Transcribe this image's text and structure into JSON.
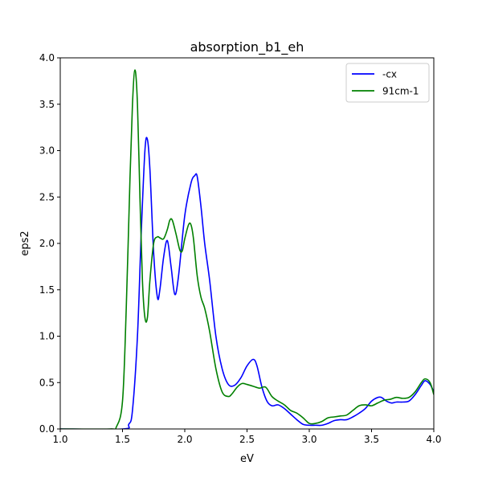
{
  "chart_data": {
    "type": "line",
    "title": "absorption_b1_eh",
    "xlabel": "eV",
    "ylabel": "eps2",
    "xlim": [
      1.0,
      4.0
    ],
    "ylim": [
      0.0,
      4.0
    ],
    "xticks": [
      1.0,
      1.5,
      2.0,
      2.5,
      3.0,
      3.5,
      4.0
    ],
    "yticks": [
      0.0,
      0.5,
      1.0,
      1.5,
      2.0,
      2.5,
      3.0,
      3.5,
      4.0
    ],
    "xtick_labels": [
      "1.0",
      "1.5",
      "2.0",
      "2.5",
      "3.0",
      "3.5",
      "4.0"
    ],
    "ytick_labels": [
      "0.0",
      "0.5",
      "1.0",
      "1.5",
      "2.0",
      "2.5",
      "3.0",
      "3.5",
      "4.0"
    ],
    "grid": false,
    "legend_position": "top-right",
    "series": [
      {
        "name": "-cx",
        "color": "#0000ff",
        "x": [
          1.0,
          1.5,
          1.55,
          1.58,
          1.62,
          1.65,
          1.68,
          1.7,
          1.72,
          1.75,
          1.78,
          1.8,
          1.83,
          1.86,
          1.89,
          1.92,
          1.95,
          2.0,
          2.05,
          2.08,
          2.1,
          2.13,
          2.16,
          2.2,
          2.25,
          2.3,
          2.35,
          2.4,
          2.45,
          2.5,
          2.55,
          2.58,
          2.62,
          2.66,
          2.7,
          2.75,
          2.8,
          2.85,
          2.9,
          2.95,
          3.0,
          3.05,
          3.1,
          3.15,
          3.2,
          3.25,
          3.3,
          3.35,
          3.4,
          3.45,
          3.5,
          3.55,
          3.58,
          3.62,
          3.66,
          3.7,
          3.75,
          3.8,
          3.85,
          3.9,
          3.93,
          3.97,
          4.0
        ],
        "y": [
          0.0,
          0.0,
          0.05,
          0.2,
          1.0,
          2.1,
          3.0,
          3.12,
          2.8,
          1.9,
          1.42,
          1.5,
          1.85,
          2.03,
          1.75,
          1.45,
          1.65,
          2.3,
          2.65,
          2.73,
          2.72,
          2.4,
          2.0,
          1.6,
          1.0,
          0.65,
          0.48,
          0.47,
          0.55,
          0.68,
          0.75,
          0.68,
          0.45,
          0.3,
          0.25,
          0.26,
          0.22,
          0.16,
          0.1,
          0.05,
          0.04,
          0.04,
          0.04,
          0.06,
          0.09,
          0.1,
          0.1,
          0.13,
          0.17,
          0.22,
          0.3,
          0.34,
          0.34,
          0.3,
          0.28,
          0.29,
          0.29,
          0.3,
          0.37,
          0.47,
          0.52,
          0.48,
          0.4
        ]
      },
      {
        "name": "91cm-1",
        "color": "#008000",
        "x": [
          1.0,
          1.4,
          1.45,
          1.5,
          1.53,
          1.56,
          1.58,
          1.6,
          1.62,
          1.64,
          1.66,
          1.68,
          1.7,
          1.72,
          1.75,
          1.78,
          1.8,
          1.83,
          1.86,
          1.88,
          1.9,
          1.93,
          1.96,
          1.98,
          2.0,
          2.03,
          2.05,
          2.07,
          2.1,
          2.13,
          2.16,
          2.2,
          2.25,
          2.3,
          2.35,
          2.38,
          2.42,
          2.46,
          2.5,
          2.55,
          2.6,
          2.65,
          2.7,
          2.75,
          2.8,
          2.85,
          2.9,
          2.95,
          3.0,
          3.05,
          3.1,
          3.15,
          3.2,
          3.25,
          3.3,
          3.35,
          3.4,
          3.45,
          3.5,
          3.55,
          3.6,
          3.65,
          3.7,
          3.75,
          3.8,
          3.85,
          3.9,
          3.93,
          3.97,
          4.0
        ],
        "y": [
          0.0,
          0.0,
          0.02,
          0.3,
          1.3,
          2.7,
          3.5,
          3.87,
          3.5,
          2.5,
          1.6,
          1.2,
          1.2,
          1.6,
          2.0,
          2.07,
          2.06,
          2.05,
          2.15,
          2.25,
          2.25,
          2.1,
          1.93,
          1.92,
          2.05,
          2.2,
          2.2,
          2.05,
          1.65,
          1.42,
          1.3,
          1.05,
          0.65,
          0.4,
          0.35,
          0.38,
          0.45,
          0.49,
          0.48,
          0.46,
          0.44,
          0.45,
          0.35,
          0.3,
          0.26,
          0.2,
          0.17,
          0.12,
          0.06,
          0.06,
          0.08,
          0.12,
          0.13,
          0.14,
          0.15,
          0.2,
          0.25,
          0.26,
          0.25,
          0.28,
          0.31,
          0.32,
          0.34,
          0.33,
          0.34,
          0.4,
          0.5,
          0.54,
          0.5,
          0.37
        ]
      }
    ]
  }
}
